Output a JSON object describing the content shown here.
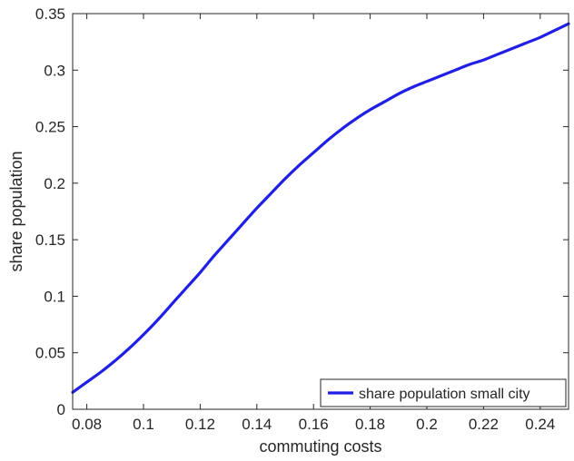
{
  "chart_data": {
    "type": "line",
    "xlabel": "commuting costs",
    "ylabel": "share population",
    "xlim": [
      0.075,
      0.25
    ],
    "ylim": [
      0,
      0.35
    ],
    "x_ticks": [
      "0.08",
      "0.1",
      "0.12",
      "0.14",
      "0.16",
      "0.18",
      "0.2",
      "0.22",
      "0.24"
    ],
    "y_ticks": [
      "0",
      "0.05",
      "0.1",
      "0.15",
      "0.2",
      "0.25",
      "0.3",
      "0.35"
    ],
    "grid": false,
    "legend_position": "bottom-right",
    "series": [
      {
        "name": "share population small city",
        "color": "#1f1fe6",
        "x": [
          0.075,
          0.08,
          0.085,
          0.09,
          0.095,
          0.1,
          0.105,
          0.11,
          0.115,
          0.12,
          0.125,
          0.13,
          0.135,
          0.14,
          0.145,
          0.15,
          0.155,
          0.16,
          0.165,
          0.17,
          0.175,
          0.18,
          0.185,
          0.19,
          0.195,
          0.2,
          0.205,
          0.21,
          0.215,
          0.22,
          0.225,
          0.23,
          0.235,
          0.24,
          0.245,
          0.25
        ],
        "y": [
          0.015,
          0.024,
          0.033,
          0.043,
          0.054,
          0.066,
          0.079,
          0.093,
          0.107,
          0.121,
          0.136,
          0.15,
          0.164,
          0.178,
          0.191,
          0.204,
          0.216,
          0.227,
          0.238,
          0.248,
          0.257,
          0.265,
          0.272,
          0.279,
          0.285,
          0.29,
          0.295,
          0.3,
          0.305,
          0.309,
          0.314,
          0.319,
          0.324,
          0.329,
          0.335,
          0.341
        ]
      }
    ]
  }
}
